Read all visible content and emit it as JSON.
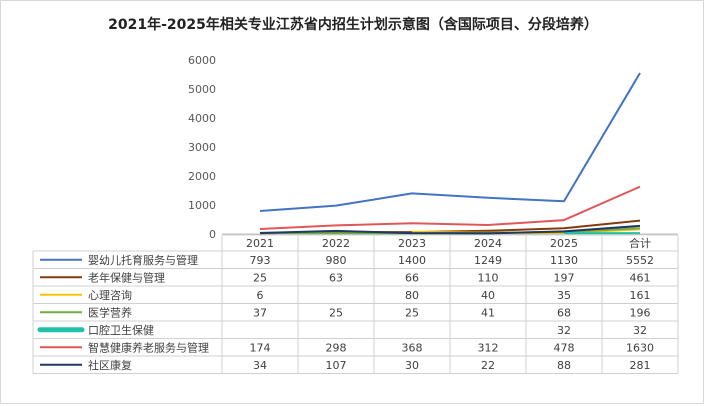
{
  "chart_data": {
    "type": "line",
    "title": "2021年-2025年相关专业江苏省内招生计划示意图（含国际项目、分段培养）",
    "categories": [
      "2021",
      "2022",
      "2023",
      "2024",
      "2025",
      "合计"
    ],
    "ylim": [
      0,
      6000
    ],
    "yticks": [
      0,
      1000,
      2000,
      3000,
      4000,
      5000,
      6000
    ],
    "grid": false,
    "legend": "data-table",
    "series": [
      {
        "name": "婴幼儿托育服务与管理",
        "color": "#4472c4",
        "values": [
          793,
          980,
          1400,
          1249,
          1130,
          5552
        ],
        "labels": [
          "793",
          "980",
          "1400",
          "1249",
          "1130",
          "5552"
        ]
      },
      {
        "name": "老年保健与管理",
        "color": "#843c0c",
        "values": [
          25,
          63,
          66,
          110,
          197,
          461
        ],
        "labels": [
          "25",
          "63",
          "66",
          "110",
          "197",
          "461"
        ]
      },
      {
        "name": "心理咨询",
        "color": "#ffc000",
        "values": [
          6,
          null,
          80,
          40,
          35,
          161
        ],
        "labels": [
          "6",
          "",
          "80",
          "40",
          "35",
          "161"
        ]
      },
      {
        "name": "医学营养",
        "color": "#70ad47",
        "values": [
          37,
          25,
          25,
          41,
          68,
          196
        ],
        "labels": [
          "37",
          "25",
          "25",
          "41",
          "68",
          "196"
        ]
      },
      {
        "name": "口腔卫生保健",
        "color": "#21c0a8",
        "values": [
          null,
          null,
          null,
          null,
          32,
          32
        ],
        "labels": [
          "",
          "",
          "",
          "",
          "32",
          "32"
        ]
      },
      {
        "name": "智慧健康养老服务与管理",
        "color": "#e15759",
        "values": [
          174,
          298,
          368,
          312,
          478,
          1630
        ],
        "labels": [
          "174",
          "298",
          "368",
          "312",
          "478",
          "1630"
        ]
      },
      {
        "name": "社区康复",
        "color": "#1f3864",
        "values": [
          34,
          107,
          30,
          22,
          88,
          281
        ],
        "labels": [
          "34",
          "107",
          "30",
          "22",
          "88",
          "281"
        ]
      }
    ]
  }
}
